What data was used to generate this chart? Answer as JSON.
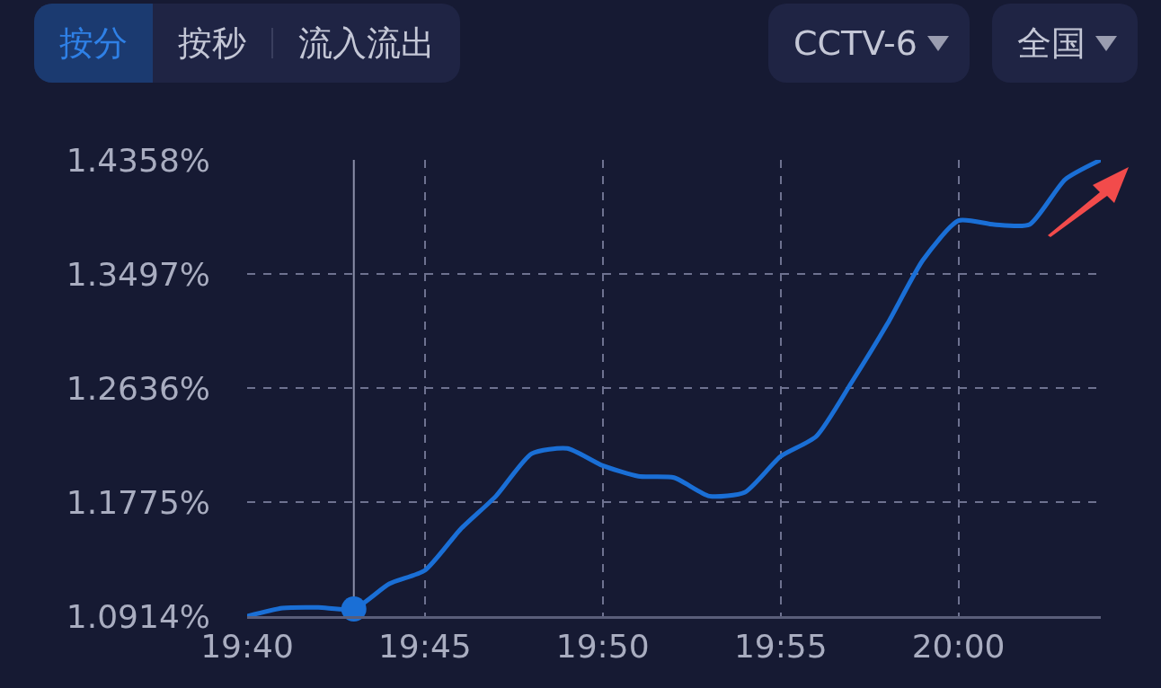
{
  "chart_data": {
    "type": "line",
    "annotations": [
      "按分",
      "按秒",
      "流入流出",
      "CCTV-6",
      "全国"
    ],
    "x": [
      19.6667,
      19.6833,
      19.7,
      19.7167,
      19.7333,
      19.75,
      19.7667,
      19.7833,
      19.8,
      19.8167,
      19.8333,
      19.85,
      19.8667,
      19.8833,
      19.9,
      19.9167,
      19.9333,
      19.95,
      19.9667,
      19.9833,
      20.0,
      20.0167,
      20.0333,
      20.05,
      20.0667
    ],
    "series": [
      {
        "color": "#1a6fd6",
        "values": [
          1.0914,
          1.0975,
          1.098,
          1.0968,
          1.1158,
          1.126,
          1.157,
          1.182,
          1.214,
          1.218,
          1.205,
          1.197,
          1.196,
          1.182,
          1.185,
          1.212,
          1.227,
          1.268,
          1.312,
          1.36,
          1.39,
          1.387,
          1.387,
          1.421,
          1.4358
        ]
      },
      {
        "type": "scatter",
        "color": "#1a6fd6",
        "marker": "circle",
        "x": [
          19.7167
        ],
        "values": [
          1.0968
        ]
      }
    ],
    "xlim": [
      19.6667,
      20.0667
    ],
    "xticks": [
      {
        "value": 19.6667,
        "label": "19:40"
      },
      {
        "value": 19.75,
        "label": "19:45"
      },
      {
        "value": 19.8333,
        "label": "19:50"
      },
      {
        "value": 19.9167,
        "label": "19:55"
      },
      {
        "value": 20.0,
        "label": "20:00"
      }
    ],
    "ylim": [
      1.0914,
      1.4358
    ],
    "yticks": [
      {
        "value": 1.0914,
        "label": "1.0914%"
      },
      {
        "value": 1.1775,
        "label": "1.1775%"
      },
      {
        "value": 1.2636,
        "label": "1.2636%"
      },
      {
        "value": 1.3497,
        "label": "1.3497%"
      },
      {
        "value": 1.4358,
        "label": "1.4358%"
      }
    ],
    "ref_lines": [
      {
        "axis": "x",
        "value": 19.7167,
        "label": null,
        "color": "#8a8ea8",
        "line_style": "solid"
      }
    ],
    "grid": true,
    "line_style": "solid",
    "marker": "none"
  }
}
